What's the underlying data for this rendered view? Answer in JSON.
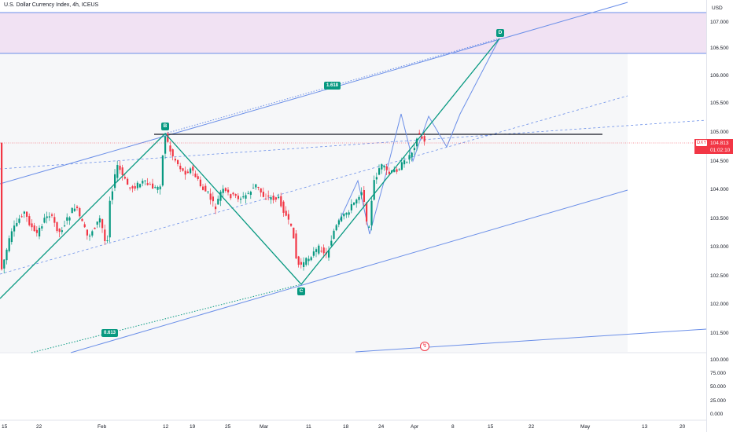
{
  "header": {
    "title": "U.S. Dollar Currency Index, 4h, ICEUS"
  },
  "price_axis": {
    "currency": "USD",
    "labels": [
      "107.000",
      "106.500",
      "106.000",
      "105.500",
      "105.000",
      "104.500",
      "104.000",
      "103.500",
      "103.000",
      "102.500",
      "102.000",
      "101.500"
    ]
  },
  "volume_axis": {
    "labels": [
      "100.000",
      "75.000",
      "50.000",
      "25.000",
      "0.000"
    ]
  },
  "time_axis": {
    "labels": [
      "15",
      "22",
      "Feb",
      "12",
      "19",
      "25",
      "Mar",
      "11",
      "18",
      "24",
      "Apr",
      "8",
      "15",
      "22",
      "May",
      "13",
      "20"
    ]
  },
  "current_price": {
    "symbol": "DXY",
    "price": "104.813",
    "countdown": "01:02:10",
    "color": "#f23645"
  },
  "pattern": {
    "points": [
      "B",
      "C",
      "D"
    ],
    "ratios": [
      "1.618",
      "0.613"
    ],
    "color": "#089981"
  },
  "flag_icon": "lightning-icon",
  "colors": {
    "up": "#089981",
    "down": "#f23645",
    "channel": "#6b8fe8",
    "zone": "#e9d5ef"
  }
}
